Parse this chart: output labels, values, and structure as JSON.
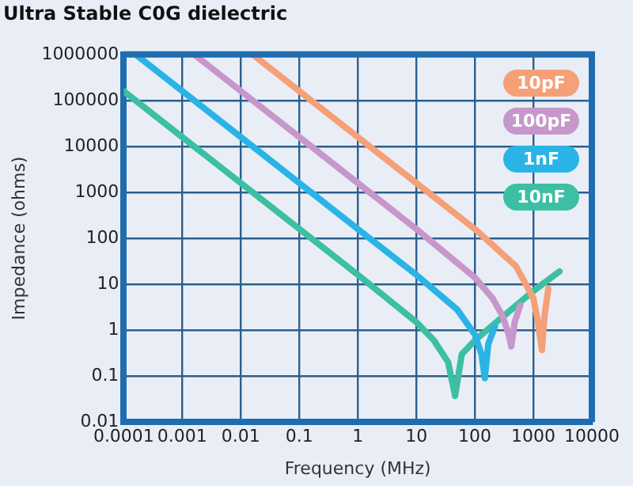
{
  "chart_data": {
    "type": "line",
    "title": "Ultra Stable C0G dielectric",
    "xlabel": "Frequency (MHz)",
    "ylabel": "Impedance (ohms)",
    "log": "xy",
    "grid": true,
    "legend": "top right",
    "marker": "none",
    "line_style": "solid",
    "xlim": [
      0.0001,
      10000
    ],
    "xticks": [
      0.0001,
      0.001,
      0.01,
      0.1,
      1,
      10,
      100,
      1000,
      10000
    ],
    "ylim": [
      0.01,
      1000000
    ],
    "yticks": [
      0.01,
      0.1,
      1,
      10,
      100,
      1000,
      10000,
      100000,
      1000000
    ],
    "series": [
      {
        "name": "10pF",
        "color": "#f5a077",
        "x": [
          0.016,
          10,
          100,
          500,
          1000,
          1200,
          1400,
          1550,
          1800
        ],
        "values": [
          1000000,
          1590,
          159,
          25,
          5,
          1.5,
          0.37,
          2,
          8
        ]
      },
      {
        "name": "100pF",
        "color": "#c797cc",
        "x": [
          0.0016,
          1,
          10,
          100,
          200,
          300,
          380,
          420,
          480,
          600
        ],
        "values": [
          1000000,
          1590,
          159,
          14,
          5,
          2,
          0.8,
          0.44,
          1.5,
          3.5
        ]
      },
      {
        "name": "1nF",
        "color": "#2ab4e6",
        "x": [
          0.00016,
          1,
          10,
          50,
          100,
          130,
          148,
          170,
          220
        ],
        "values": [
          1000000,
          159,
          16,
          2.8,
          0.8,
          0.3,
          0.09,
          0.5,
          1.2
        ]
      },
      {
        "name": "10nF",
        "color": "#3cbfa2",
        "x": [
          0.0001,
          1,
          10,
          20,
          35,
          46,
          60,
          100,
          350,
          930,
          2800
        ],
        "values": [
          159000,
          16,
          1.5,
          0.6,
          0.2,
          0.037,
          0.3,
          0.6,
          2.3,
          6.6,
          19
        ]
      }
    ]
  }
}
